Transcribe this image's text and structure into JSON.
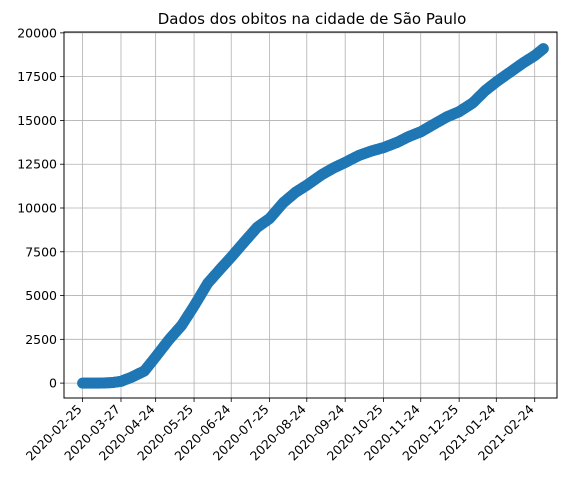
{
  "chart_data": {
    "type": "scatter",
    "title": "Dados dos obitos na cidade de São Paulo",
    "xlabel": "",
    "ylabel": "",
    "grid": true,
    "marker_color": "#1f77b4",
    "x_ticks": [
      "2020-02-25",
      "2020-03-27",
      "2020-04-24",
      "2020-05-25",
      "2020-06-24",
      "2020-07-25",
      "2020-08-24",
      "2020-09-24",
      "2020-10-25",
      "2020-11-24",
      "2020-12-25",
      "2021-01-24",
      "2021-02-24"
    ],
    "y_ticks": [
      "0",
      "2500",
      "5000",
      "7500",
      "10000",
      "12500",
      "15000",
      "17500",
      "20000"
    ],
    "ylim": [
      -850,
      20050
    ],
    "xlim": [
      "2020-02-10",
      "2021-03-14"
    ],
    "keypoints": [
      {
        "x": "2020-02-25",
        "y": 0
      },
      {
        "x": "2020-03-10",
        "y": 0
      },
      {
        "x": "2020-03-20",
        "y": 30
      },
      {
        "x": "2020-03-27",
        "y": 100
      },
      {
        "x": "2020-04-05",
        "y": 350
      },
      {
        "x": "2020-04-15",
        "y": 700
      },
      {
        "x": "2020-04-24",
        "y": 1500
      },
      {
        "x": "2020-05-05",
        "y": 2500
      },
      {
        "x": "2020-05-15",
        "y": 3300
      },
      {
        "x": "2020-05-25",
        "y": 4400
      },
      {
        "x": "2020-06-05",
        "y": 5700
      },
      {
        "x": "2020-06-15",
        "y": 6500
      },
      {
        "x": "2020-06-24",
        "y": 7200
      },
      {
        "x": "2020-07-05",
        "y": 8100
      },
      {
        "x": "2020-07-15",
        "y": 8900
      },
      {
        "x": "2020-07-25",
        "y": 9400
      },
      {
        "x": "2020-08-05",
        "y": 10300
      },
      {
        "x": "2020-08-15",
        "y": 10900
      },
      {
        "x": "2020-08-24",
        "y": 11300
      },
      {
        "x": "2020-09-05",
        "y": 11900
      },
      {
        "x": "2020-09-15",
        "y": 12300
      },
      {
        "x": "2020-09-24",
        "y": 12600
      },
      {
        "x": "2020-10-05",
        "y": 13000
      },
      {
        "x": "2020-10-15",
        "y": 13250
      },
      {
        "x": "2020-10-25",
        "y": 13450
      },
      {
        "x": "2020-11-05",
        "y": 13750
      },
      {
        "x": "2020-11-15",
        "y": 14100
      },
      {
        "x": "2020-11-24",
        "y": 14350
      },
      {
        "x": "2020-12-05",
        "y": 14800
      },
      {
        "x": "2020-12-15",
        "y": 15200
      },
      {
        "x": "2020-12-25",
        "y": 15500
      },
      {
        "x": "2021-01-05",
        "y": 16000
      },
      {
        "x": "2021-01-15",
        "y": 16700
      },
      {
        "x": "2021-01-24",
        "y": 17200
      },
      {
        "x": "2021-02-05",
        "y": 17800
      },
      {
        "x": "2021-02-15",
        "y": 18300
      },
      {
        "x": "2021-02-24",
        "y": 18700
      },
      {
        "x": "2021-03-03",
        "y": 19100
      }
    ]
  }
}
